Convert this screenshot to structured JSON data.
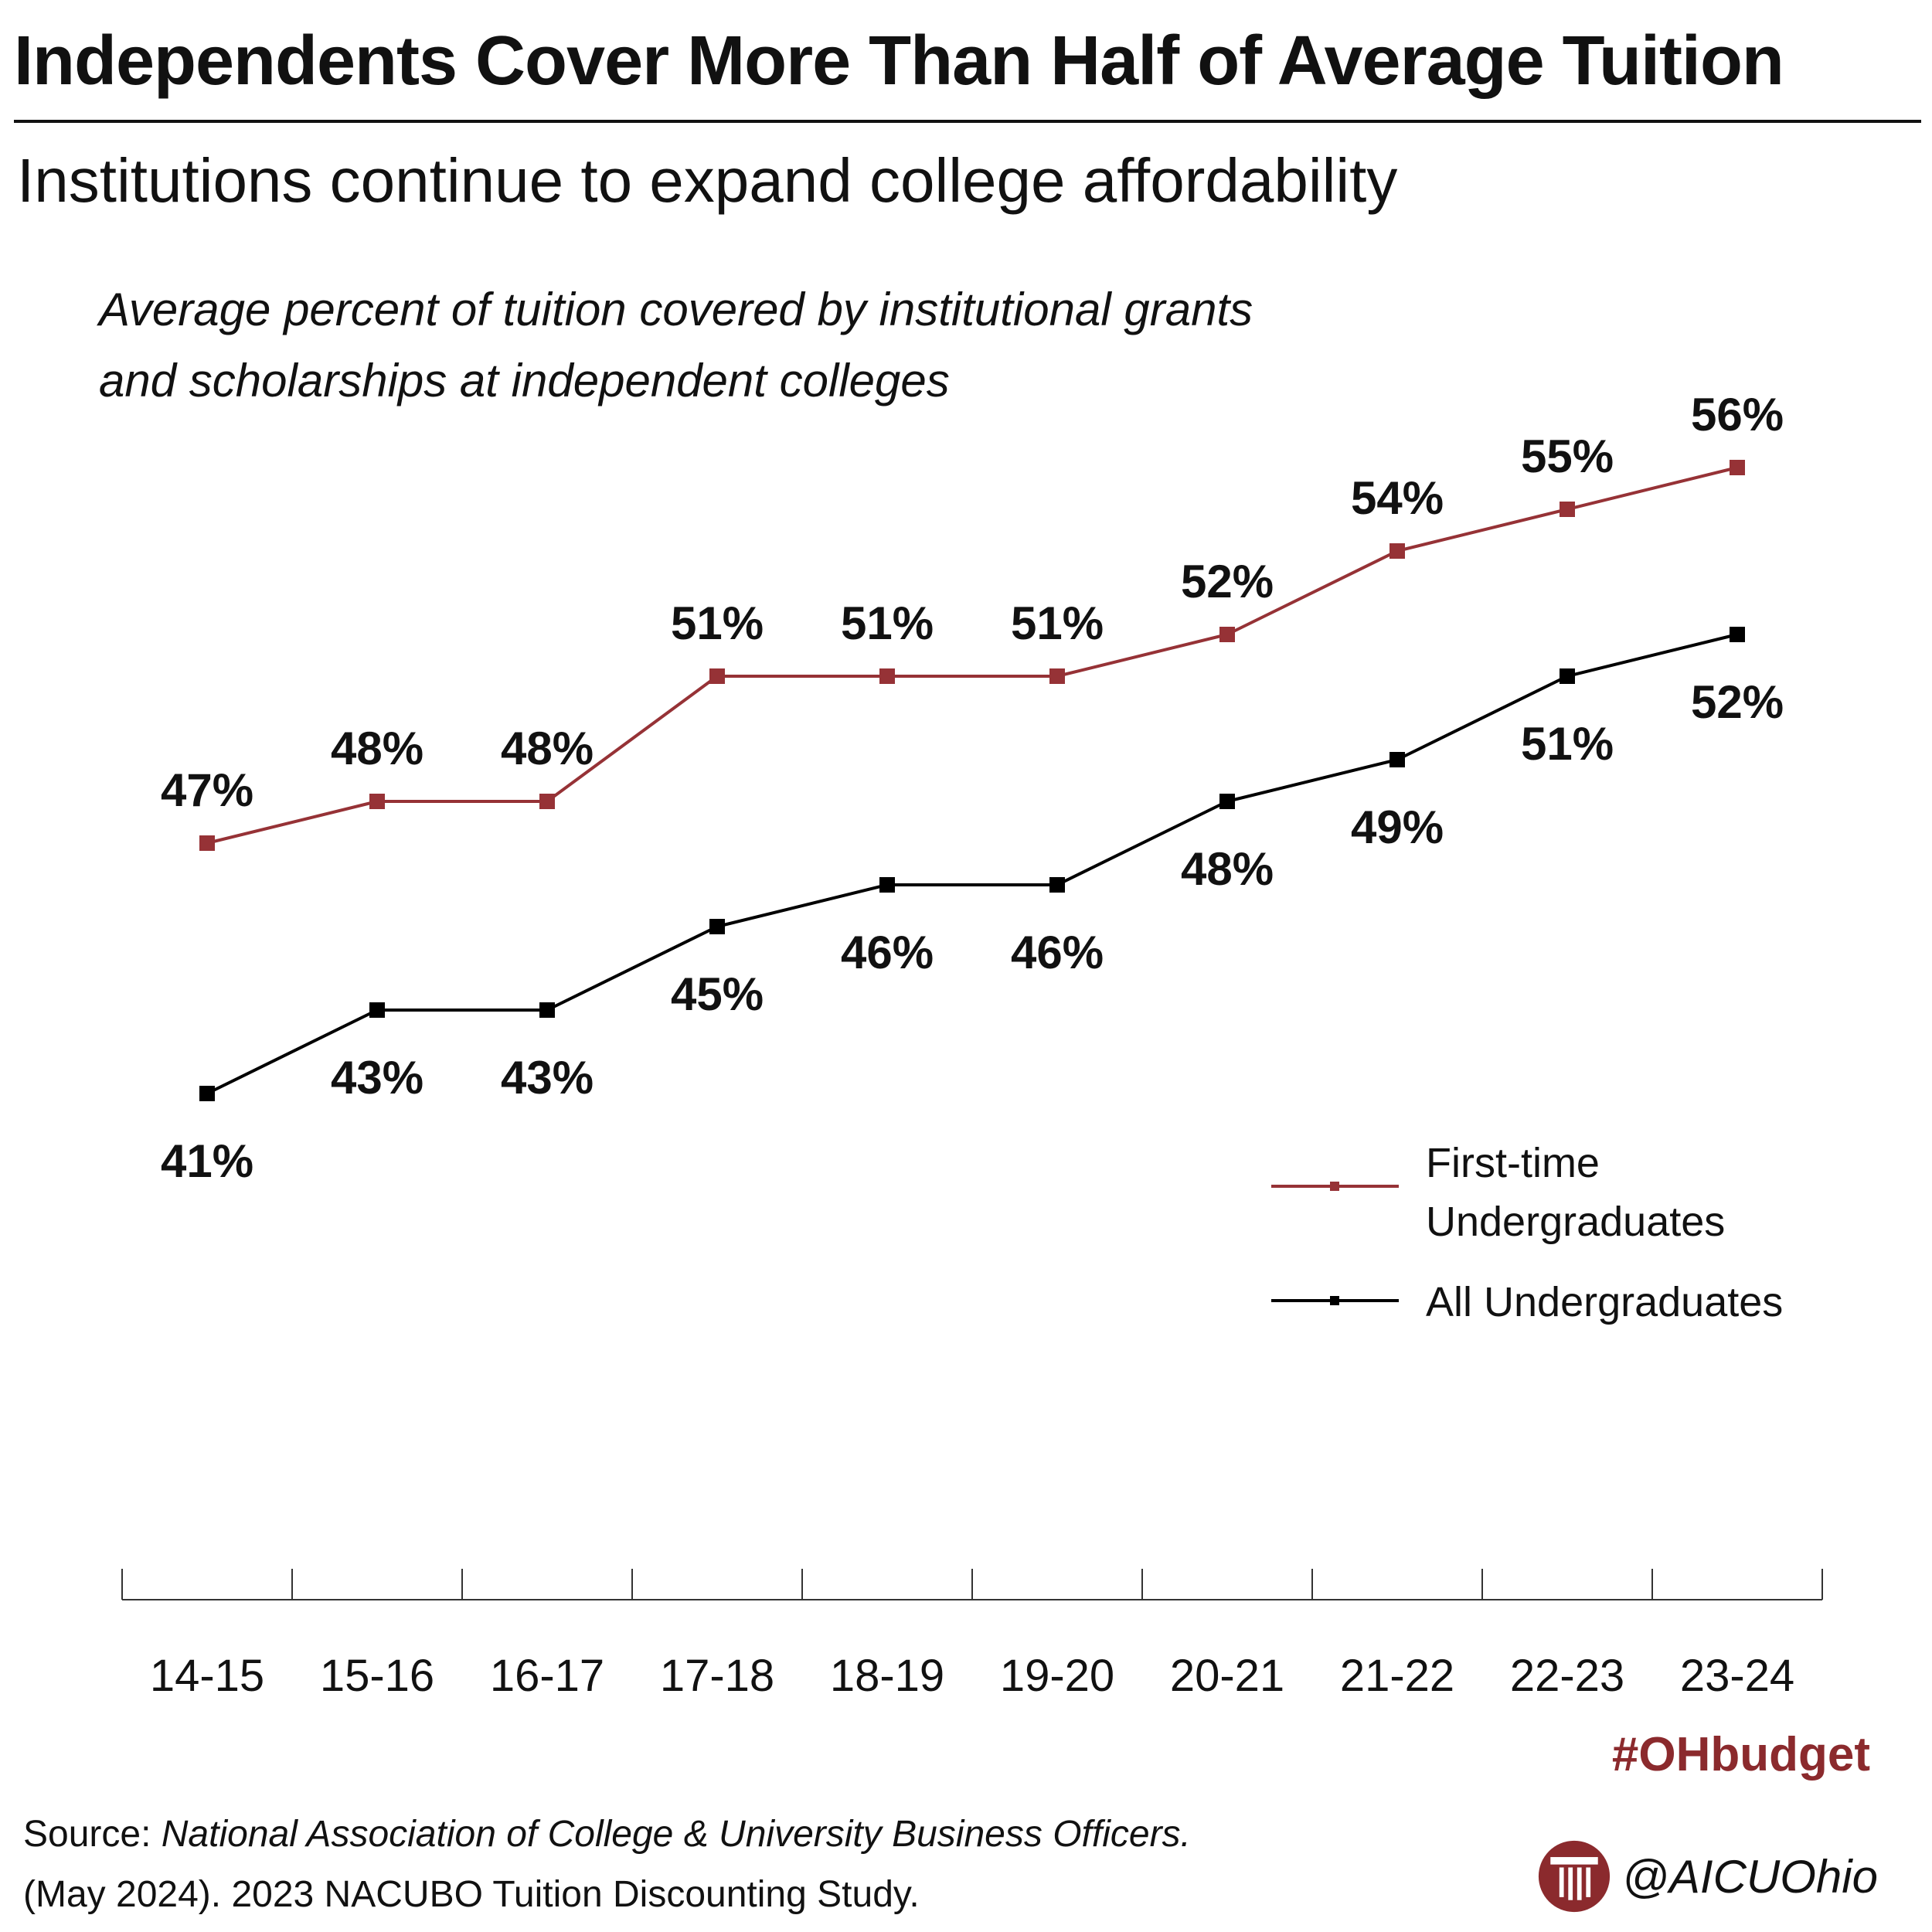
{
  "header": {
    "title": "Independents Cover More Than Half of Average Tuition",
    "subtitle": "Institutions continue to expand college affordability"
  },
  "chart_data": {
    "type": "line",
    "title": "Average percent of tuition covered by institutional grants and scholarships at independent colleges",
    "xlabel": "",
    "ylabel": "",
    "categories": [
      "14-15",
      "15-16",
      "16-17",
      "17-18",
      "18-19",
      "19-20",
      "20-21",
      "21-22",
      "22-23",
      "23-24"
    ],
    "series": [
      {
        "name": "First-time Undergraduates",
        "color": "#963236",
        "values": [
          47,
          48,
          48,
          51,
          51,
          51,
          52,
          54,
          55,
          56
        ],
        "labels": [
          "47%",
          "48%",
          "48%",
          "51%",
          "51%",
          "51%",
          "52%",
          "54%",
          "55%",
          "56%"
        ],
        "label_position": "above"
      },
      {
        "name": "All Undergraduates",
        "color": "#000000",
        "values": [
          41,
          43,
          43,
          45,
          46,
          46,
          48,
          49,
          51,
          52
        ],
        "labels": [
          "41%",
          "43%",
          "43%",
          "45%",
          "46%",
          "46%",
          "48%",
          "49%",
          "51%",
          "52%"
        ],
        "label_position": "below"
      }
    ],
    "legend": {
      "position": "right",
      "entries": [
        {
          "lines": [
            "First-time",
            "Undergraduates"
          ],
          "color": "#963236"
        },
        {
          "lines": [
            "All Undergraduates"
          ],
          "color": "#000000"
        }
      ]
    },
    "grid": false
  },
  "footer": {
    "source_prefix": "Source: ",
    "source_italic": "National Association of College & University Business Officers.",
    "source_line2": "(May 2024). 2023 NACUBO Tuition Discounting Study.",
    "hashtag": "#OHbudget",
    "handle": "@AICUOhio",
    "logo_color": "#8b2a2d"
  }
}
